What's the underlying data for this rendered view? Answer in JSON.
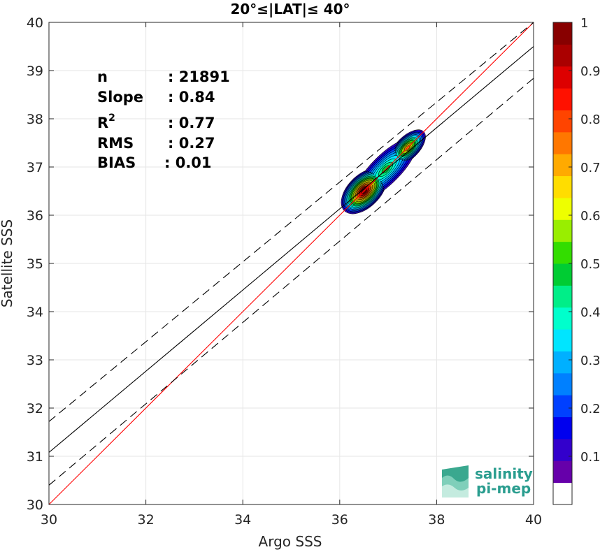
{
  "chart_data": {
    "type": "density-scatter",
    "title": "20°≤|LAT|≤ 40°",
    "xlabel": "Argo SSS",
    "ylabel": "Satellite SSS",
    "xlim": [
      30,
      40
    ],
    "ylim": [
      30,
      40
    ],
    "xticks": [
      30,
      32,
      34,
      36,
      38,
      40
    ],
    "yticks": [
      30,
      31,
      32,
      33,
      34,
      35,
      36,
      37,
      38,
      39,
      40
    ],
    "grid": true,
    "lines": {
      "one_to_one": {
        "color": "#ff0000",
        "style": "solid",
        "y_at_x30": 30,
        "y_at_x40": 40
      },
      "regression": {
        "color": "#000000",
        "style": "solid",
        "y_at_x30": 31.08,
        "y_at_x40": 39.5
      },
      "upper_bound": {
        "color": "#000000",
        "style": "dashed",
        "y_at_x30": 31.72,
        "y_at_x40": 40.0
      },
      "lower_bound": {
        "color": "#000000",
        "style": "dashed",
        "y_at_x30": 30.4,
        "y_at_x40": 38.84
      }
    },
    "density_peaks": [
      {
        "x": 36.5,
        "y": 36.5,
        "value": 1.0
      },
      {
        "x": 37.4,
        "y": 37.4,
        "value": 0.7
      }
    ],
    "stats": [
      {
        "label": "n",
        "value": ": 21891"
      },
      {
        "label": "Slope",
        "value": ": 0.84"
      },
      {
        "label": "R",
        "sup": "2",
        "value": ": 0.77"
      },
      {
        "label": "RMS",
        "value": ": 0.27"
      },
      {
        "label": "BIAS",
        "value": ": 0.01"
      }
    ],
    "colorbar": {
      "range": [
        0,
        1
      ],
      "ticks": [
        "0.1",
        "0.2",
        "0.3",
        "0.4",
        "0.5",
        "0.6",
        "0.7",
        "0.8",
        "0.9",
        "1"
      ],
      "colors": [
        "#ffffff",
        "#6600aa",
        "#3300cc",
        "#0000ee",
        "#0040ff",
        "#0080ff",
        "#00b0ff",
        "#00e5ff",
        "#00ffcc",
        "#00ee88",
        "#00cc33",
        "#33dd00",
        "#99ee00",
        "#eeff00",
        "#ffdd00",
        "#ffaa00",
        "#ff7700",
        "#ff4400",
        "#ff1100",
        "#dd0000",
        "#aa0000",
        "#880000"
      ]
    }
  },
  "logo": {
    "line1": "salinity",
    "line2": "pi-mep"
  }
}
